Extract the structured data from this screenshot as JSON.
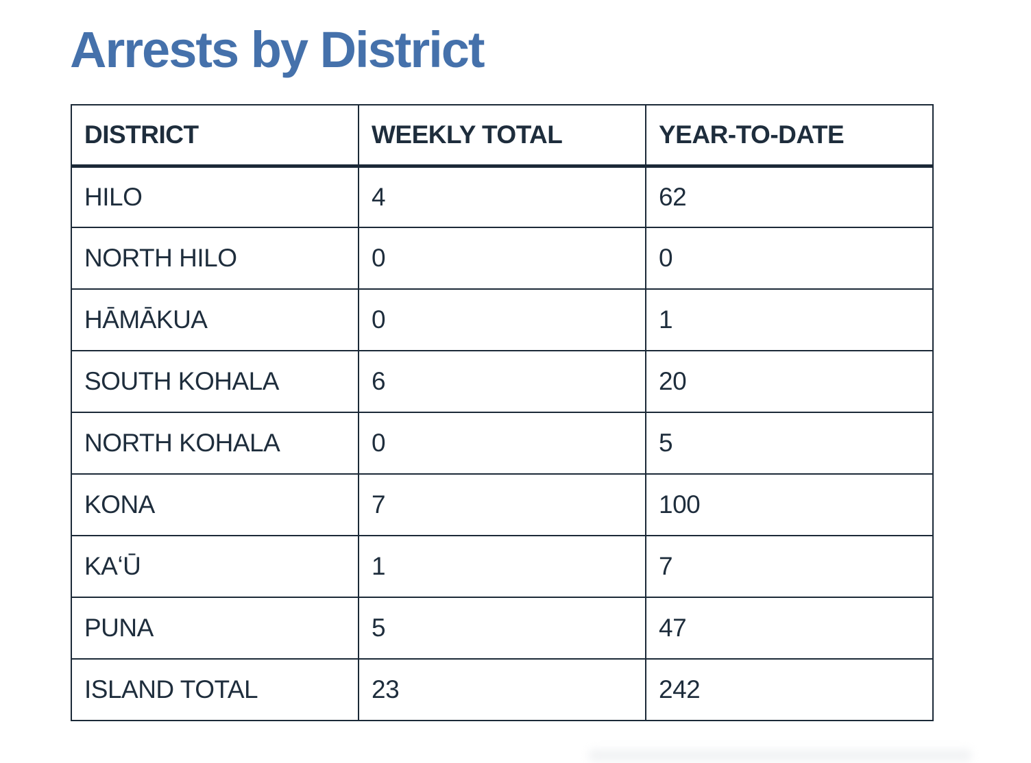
{
  "theme": {
    "title_color": "#4571ab",
    "text_color": "#1e2d3c",
    "border_color": "#1b2937",
    "background_color": "#ffffff"
  },
  "page": {
    "title": "Arrests by District"
  },
  "table": {
    "columns": [
      "DISTRICT",
      "WEEKLY TOTAL",
      "YEAR-TO-DATE"
    ],
    "rows": [
      {
        "district": "HILO",
        "weekly": "4",
        "ytd": "62"
      },
      {
        "district": "NORTH HILO",
        "weekly": "0",
        "ytd": "0"
      },
      {
        "district": "HĀMĀKUA",
        "weekly": "0",
        "ytd": "1"
      },
      {
        "district": "SOUTH KOHALA",
        "weekly": "6",
        "ytd": "20"
      },
      {
        "district": "NORTH KOHALA",
        "weekly": "0",
        "ytd": "5"
      },
      {
        "district": "KONA",
        "weekly": "7",
        "ytd": "100"
      },
      {
        "district": "KAʻŪ",
        "weekly": "1",
        "ytd": "7"
      },
      {
        "district": "PUNA",
        "weekly": "5",
        "ytd": "47"
      },
      {
        "district": "ISLAND TOTAL",
        "weekly": "23",
        "ytd": "242"
      }
    ]
  },
  "chart_data": {
    "type": "table",
    "title": "Arrests by District",
    "columns": [
      "DISTRICT",
      "WEEKLY TOTAL",
      "YEAR-TO-DATE"
    ],
    "rows": [
      [
        "HILO",
        4,
        62
      ],
      [
        "NORTH HILO",
        0,
        0
      ],
      [
        "HĀMĀKUA",
        0,
        1
      ],
      [
        "SOUTH KOHALA",
        6,
        20
      ],
      [
        "NORTH KOHALA",
        0,
        5
      ],
      [
        "KONA",
        7,
        100
      ],
      [
        "KAʻŪ",
        1,
        7
      ],
      [
        "PUNA",
        5,
        47
      ],
      [
        "ISLAND TOTAL",
        23,
        242
      ]
    ]
  }
}
